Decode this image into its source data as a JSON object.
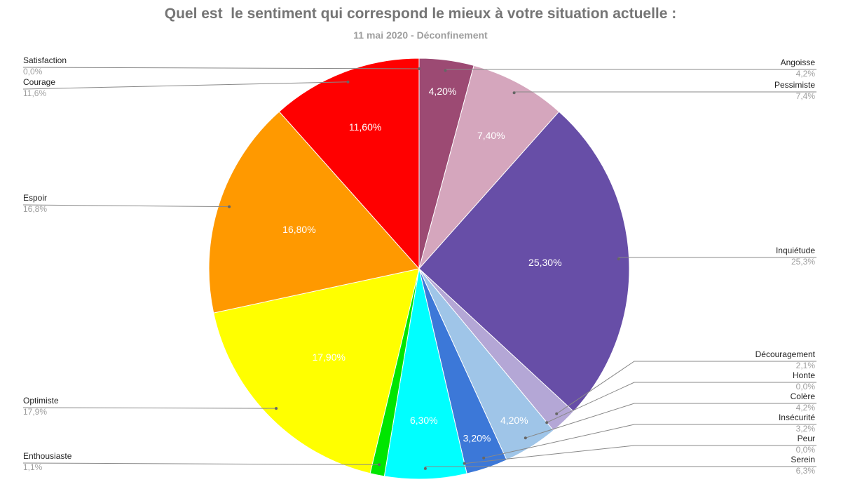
{
  "chart_data": {
    "type": "pie",
    "title": "Quel est  le sentiment qui correspond le mieux à votre situation actuelle :",
    "subtitle": "11 mai 2020 - Déconfinement",
    "slices": [
      {
        "name": "Angoisse",
        "value": 4.2,
        "legend_value": "4,2%",
        "inside_label": "4,20%",
        "color": "#9c4a73"
      },
      {
        "name": "Pessimiste",
        "value": 7.4,
        "legend_value": "7,4%",
        "inside_label": "7,40%",
        "color": "#d5a6bd"
      },
      {
        "name": "Inquiétude",
        "value": 25.3,
        "legend_value": "25,3%",
        "inside_label": "25,30%",
        "color": "#674ea7"
      },
      {
        "name": "Découragement",
        "value": 2.1,
        "legend_value": "2,1%",
        "inside_label": "",
        "color": "#b4a7d6"
      },
      {
        "name": "Honte",
        "value": 0.0,
        "legend_value": "0,0%",
        "inside_label": "",
        "color": "#cccccc"
      },
      {
        "name": "Colère",
        "value": 4.2,
        "legend_value": "4,2%",
        "inside_label": "4,20%",
        "color": "#9fc5e8"
      },
      {
        "name": "Insécurité",
        "value": 3.2,
        "legend_value": "3,2%",
        "inside_label": "3,20%",
        "color": "#3c78d8"
      },
      {
        "name": "Peur",
        "value": 0.0,
        "legend_value": "0,0%",
        "inside_label": "",
        "color": "#999999"
      },
      {
        "name": "Serein",
        "value": 6.3,
        "legend_value": "6,3%",
        "inside_label": "6,30%",
        "color": "#00ffff"
      },
      {
        "name": "Enthousiaste",
        "value": 1.1,
        "legend_value": "1,1%",
        "inside_label": "",
        "color": "#00e600"
      },
      {
        "name": "Optimiste",
        "value": 17.9,
        "legend_value": "17,9%",
        "inside_label": "17,90%",
        "color": "#ffff00"
      },
      {
        "name": "Espoir",
        "value": 16.8,
        "legend_value": "16,8%",
        "inside_label": "16,80%",
        "color": "#ff9900"
      },
      {
        "name": "Courage",
        "value": 11.6,
        "legend_value": "11,6%",
        "inside_label": "11,60%",
        "color": "#ff0000"
      },
      {
        "name": "Satisfaction",
        "value": 0.0,
        "legend_value": "0,0%",
        "inside_label": "",
        "color": "#e06666"
      }
    ],
    "start_angle_deg": 0,
    "direction": "clockwise"
  }
}
